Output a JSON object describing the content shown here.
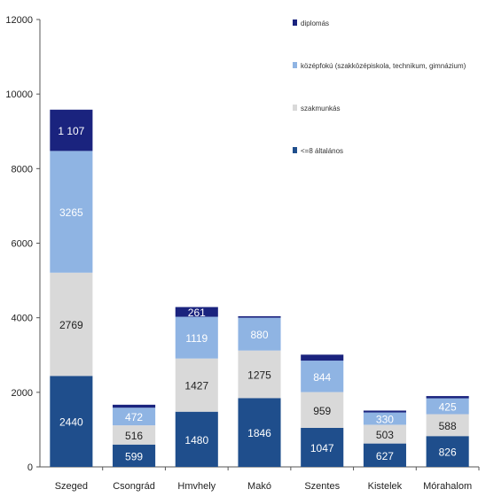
{
  "chart_data": {
    "type": "bar",
    "stacked": true,
    "categories": [
      "Szeged",
      "Csongrád",
      "Hmvhely",
      "Makó",
      "Szentes",
      "Kistelek",
      "Mórahalom"
    ],
    "ylim": [
      0,
      12000
    ],
    "yticks": [
      0,
      2000,
      4000,
      6000,
      8000,
      10000,
      12000
    ],
    "grid": false,
    "legend_position": "top-right",
    "series": [
      {
        "name": "<=8 általános",
        "color": "#1F4E8C",
        "label_color": "#ffffff",
        "values": [
          2440,
          599,
          1480,
          1846,
          1047,
          627,
          826
        ],
        "labels": [
          "2440",
          "599",
          "1480",
          "1846",
          "1047",
          "627",
          "826"
        ]
      },
      {
        "name": "szakmunkás",
        "color": "#D9D9D9",
        "label_color": "#222222",
        "values": [
          2769,
          516,
          1427,
          1275,
          959,
          503,
          588
        ],
        "labels": [
          "2769",
          "516",
          "1427",
          "1275",
          "959",
          "503",
          "588"
        ]
      },
      {
        "name": "középfokú (szakközépiskola, technikum, gimnázium)",
        "color": "#8FB4E3",
        "label_color": "#ffffff",
        "values": [
          3265,
          472,
          1119,
          880,
          844,
          330,
          425
        ],
        "labels": [
          "3265",
          "472",
          "1119",
          "880",
          "844",
          "330",
          "425"
        ]
      },
      {
        "name": "diplomás",
        "color": "#1A237E",
        "label_color": "#ffffff",
        "values": [
          1107,
          80,
          261,
          40,
          160,
          50,
          60
        ],
        "labels": [
          "1 107",
          "",
          "261",
          "",
          "",
          "",
          ""
        ]
      }
    ]
  }
}
